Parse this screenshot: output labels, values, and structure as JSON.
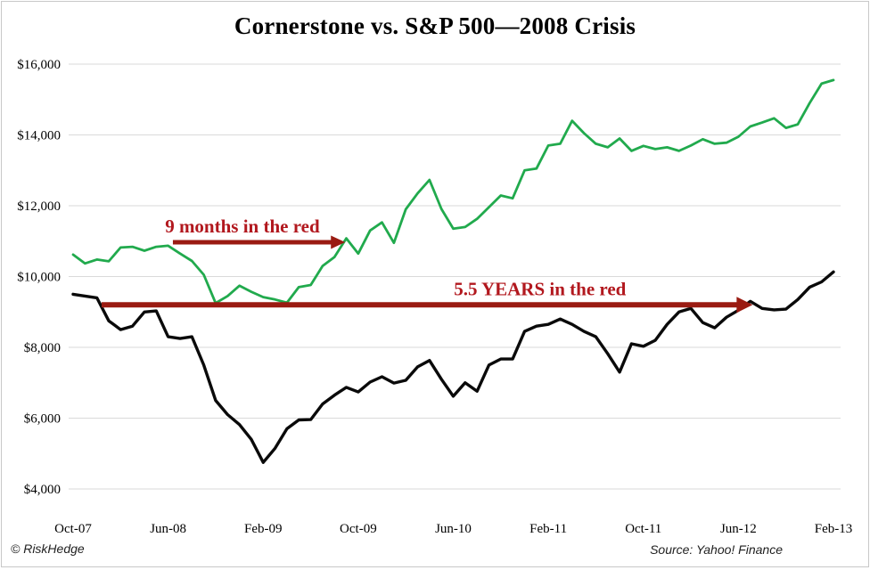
{
  "page": {
    "title": "Cornerstone vs. S&P 500—2008 Crisis",
    "footer_left": "© RiskHedge",
    "footer_right": "Source: Yahoo! Finance"
  },
  "colors": {
    "cornerstone_line": "#21AA4D",
    "sp500_line": "#0A0A0A",
    "annotation_text": "#B2181E",
    "annotation_arrow": "#9A1B12",
    "gridline": "#DADADA",
    "axis_text": "#000000",
    "frame_border": "#C8C8C8"
  },
  "chart_data": {
    "type": "line",
    "title": "Cornerstone vs. S&P 500—2008 Crisis",
    "grid": "horizontal",
    "legend_position": "none",
    "ylim": [
      4000,
      16000
    ],
    "y_ticks": [
      {
        "label": "$16,000",
        "value": 16000
      },
      {
        "label": "$14,000",
        "value": 14000
      },
      {
        "label": "$12,000",
        "value": 12000
      },
      {
        "label": "$10,000",
        "value": 10000
      },
      {
        "label": "$8,000",
        "value": 8000
      },
      {
        "label": "$6,000",
        "value": 6000
      },
      {
        "label": "$4,000",
        "value": 4000
      }
    ],
    "x_tick_labels": [
      "Oct-07",
      "Jun-08",
      "Feb-09",
      "Oct-09",
      "Jun-10",
      "Feb-11",
      "Oct-11",
      "Jun-12",
      "Feb-13"
    ],
    "x_tick_indices": [
      0,
      8,
      16,
      24,
      32,
      40,
      48,
      56,
      64
    ],
    "x": [
      "Oct-07",
      "Nov-07",
      "Dec-07",
      "Jan-08",
      "Feb-08",
      "Mar-08",
      "Apr-08",
      "May-08",
      "Jun-08",
      "Jul-08",
      "Aug-08",
      "Sep-08",
      "Oct-08",
      "Nov-08",
      "Dec-08",
      "Jan-09",
      "Feb-09",
      "Mar-09",
      "Apr-09",
      "May-09",
      "Jun-09",
      "Jul-09",
      "Aug-09",
      "Sep-09",
      "Oct-09",
      "Nov-09",
      "Dec-09",
      "Jan-10",
      "Feb-10",
      "Mar-10",
      "Apr-10",
      "May-10",
      "Jun-10",
      "Jul-10",
      "Aug-10",
      "Sep-10",
      "Oct-10",
      "Nov-10",
      "Dec-10",
      "Jan-11",
      "Feb-11",
      "Mar-11",
      "Apr-11",
      "May-11",
      "Jun-11",
      "Jul-11",
      "Aug-11",
      "Sep-11",
      "Oct-11",
      "Nov-11",
      "Dec-11",
      "Jan-12",
      "Feb-12",
      "Mar-12",
      "Apr-12",
      "May-12",
      "Jun-12",
      "Jul-12",
      "Aug-12",
      "Sep-12",
      "Oct-12",
      "Nov-12",
      "Dec-12",
      "Jan-13",
      "Feb-13"
    ],
    "series": [
      {
        "name": "Cornerstone",
        "color_key": "cornerstone_line",
        "values": [
          10620,
          10370,
          10480,
          10430,
          10820,
          10840,
          10730,
          10840,
          10870,
          10650,
          10440,
          10050,
          9250,
          9450,
          9740,
          9570,
          9420,
          9350,
          9260,
          9700,
          9760,
          10300,
          10550,
          11080,
          10650,
          11300,
          11530,
          10950,
          11900,
          12350,
          12730,
          11910,
          11350,
          11400,
          11630,
          11960,
          12290,
          12210,
          13000,
          13050,
          13700,
          13750,
          14400,
          14050,
          13750,
          13650,
          13900,
          13550,
          13690,
          13600,
          13650,
          13550,
          13700,
          13880,
          13750,
          13780,
          13950,
          14240,
          14350,
          14470,
          14200,
          14300,
          14900,
          15450,
          15550
        ]
      },
      {
        "name": "S&P 500",
        "color_key": "sp500_line",
        "values": [
          9500,
          9450,
          9400,
          8750,
          8500,
          8600,
          9000,
          9030,
          8300,
          8250,
          8300,
          7500,
          6500,
          6100,
          5820,
          5400,
          4750,
          5150,
          5700,
          5950,
          5960,
          6400,
          6650,
          6870,
          6740,
          7020,
          7170,
          6990,
          7070,
          7450,
          7630,
          7100,
          6620,
          7000,
          6760,
          7500,
          7670,
          7670,
          8450,
          8600,
          8650,
          8800,
          8650,
          8450,
          8300,
          7820,
          7300,
          8100,
          8030,
          8200,
          8650,
          9000,
          9100,
          8700,
          8550,
          8850,
          9050,
          9300,
          9100,
          9060,
          9080,
          9350,
          9700,
          9850,
          10130
        ]
      }
    ],
    "annotations": [
      {
        "text": "9 months in the red",
        "text_center_month": 14.25,
        "arrow": {
          "from_month": 8.4,
          "to_month": 22.9,
          "value": 10970
        }
      },
      {
        "text": "5.5 YEARS in the red",
        "text_center_month": 39.3,
        "arrow": {
          "from_month": 2.4,
          "to_month": 57.2,
          "value": 9200
        }
      }
    ]
  }
}
